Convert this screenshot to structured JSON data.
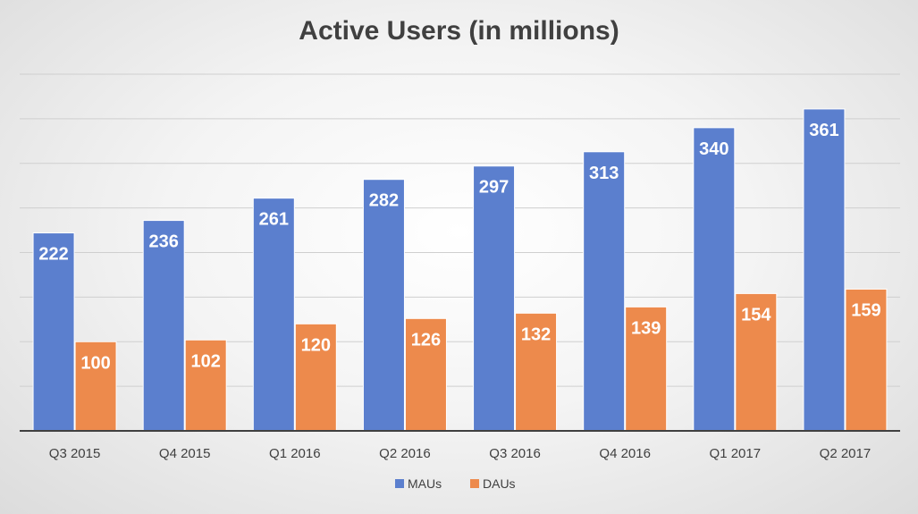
{
  "chart_data": {
    "type": "bar",
    "title": "Active Users (in millions)",
    "xlabel": "",
    "ylabel": "",
    "categories": [
      "Q3 2015",
      "Q4 2015",
      "Q1 2016",
      "Q2 2016",
      "Q3 2016",
      "Q4 2016",
      "Q1 2017",
      "Q2 2017"
    ],
    "series": [
      {
        "name": "MAUs",
        "values": [
          222,
          236,
          261,
          282,
          297,
          313,
          340,
          361
        ],
        "color": "#5b7fce"
      },
      {
        "name": "DAUs",
        "values": [
          100,
          102,
          120,
          126,
          132,
          139,
          154,
          159
        ],
        "color": "#ed8a4c"
      }
    ],
    "ylim": [
      0,
      400
    ],
    "grid": true,
    "legend": "bottom"
  }
}
